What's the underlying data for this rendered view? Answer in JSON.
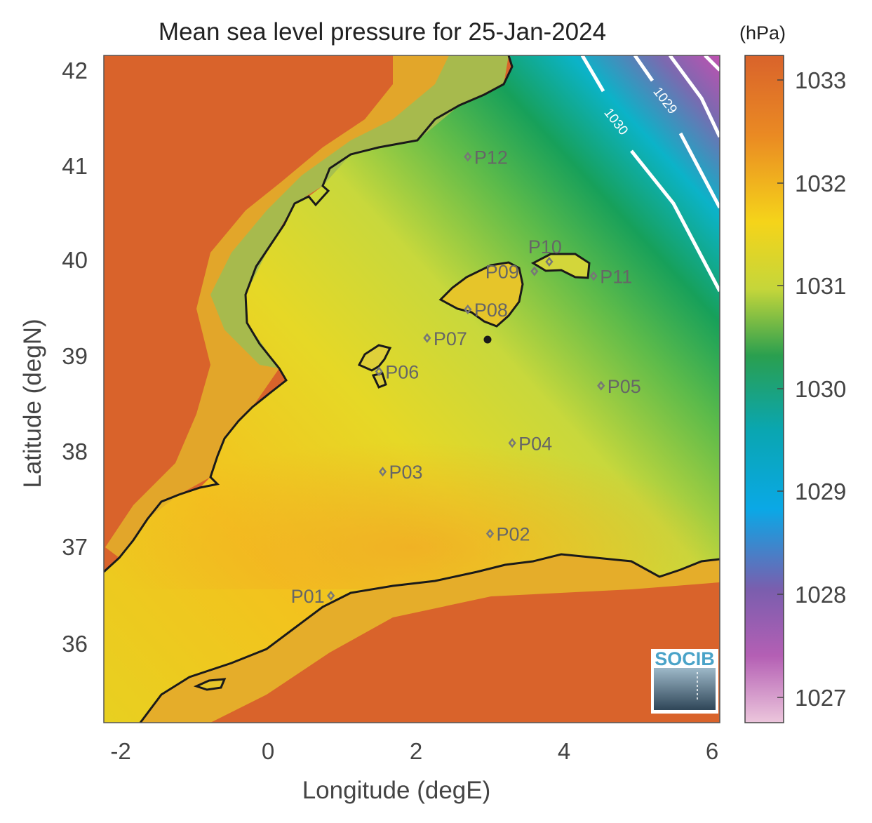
{
  "title": "Mean sea level pressure for 25-Jan-2024",
  "xlabel": "Longitude (degE)",
  "ylabel": "Latitude (degN)",
  "x_ticks": [
    "-2",
    "0",
    "2",
    "4",
    "6"
  ],
  "y_ticks": [
    "36",
    "37",
    "38",
    "39",
    "40",
    "41",
    "42"
  ],
  "colorbar": {
    "unit": "(hPa)",
    "ticks": [
      "1027",
      "1028",
      "1029",
      "1030",
      "1031",
      "1032",
      "1033"
    ]
  },
  "isobar_labels": [
    "1030",
    "1029"
  ],
  "logo_text": "SOCIB",
  "stations": [
    {
      "label": "P01",
      "lon": 0.85,
      "lat": 36.5
    },
    {
      "label": "P02",
      "lon": 3.0,
      "lat": 37.15
    },
    {
      "label": "P03",
      "lon": 1.55,
      "lat": 37.8
    },
    {
      "label": "P04",
      "lon": 3.3,
      "lat": 38.1
    },
    {
      "label": "P05",
      "lon": 4.5,
      "lat": 38.7
    },
    {
      "label": "P06",
      "lon": 1.5,
      "lat": 38.85
    },
    {
      "label": "P07",
      "lon": 2.15,
      "lat": 39.2
    },
    {
      "label": "P08",
      "lon": 2.7,
      "lat": 39.5
    },
    {
      "label": "P09",
      "lon": 3.6,
      "lat": 39.9
    },
    {
      "label": "P10",
      "lon": 3.8,
      "lat": 40.0
    },
    {
      "label": "P11",
      "lon": 4.4,
      "lat": 39.85
    },
    {
      "label": "P12",
      "lon": 2.7,
      "lat": 41.1
    }
  ],
  "colors": {
    "land": "#d9632b",
    "sea_high": "#f0c820",
    "sea_mid": "#c8d83c",
    "sea_low": "#1a9e54",
    "sea_lowest": "#0aaee0",
    "coast": "#1a1a1a",
    "station_marker": "#777777"
  }
}
